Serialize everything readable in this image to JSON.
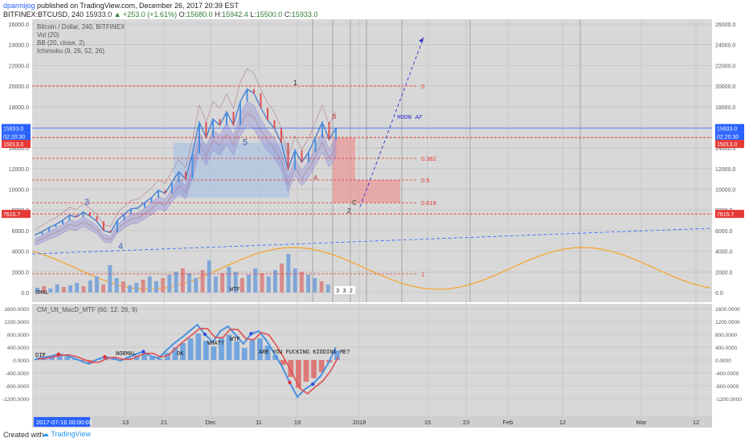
{
  "header": {
    "user": "dparmijog",
    "published_text": "published on TradingView.com, December 26, 2017 20:39 EST",
    "symbol": "BITFINEX:BTCUSD, 240",
    "change": "▲ +253.0 (+1.61%)",
    "price": "15933.0",
    "open_label": "O:",
    "open": "15680.0",
    "high_label": "H:",
    "high": "15942.4",
    "low_label": "L:",
    "low": "15500.0",
    "close_label": "C:",
    "close": "15933.0"
  },
  "legend": {
    "title": "Bitcoin / Dollar, 240, BITFINEX",
    "vol": "Vol (20)",
    "bb": "BB (20, close, 2)",
    "ichimoku": "Ichimoku (9, 26, 52, 26)",
    "macd": "CM_Ult_MacD_MTF (60, 12, 26, 9)"
  },
  "colors": {
    "pane_bg": "#d8d8d8",
    "grid": "#bcbcbc",
    "price_line": "#2962ff",
    "level_red": "#e53935",
    "sine": "#f7a325",
    "box_blue": "rgba(160,190,230,0.55)",
    "box_red": "rgba(235,150,150,0.7)",
    "macd_up": "#4a90e2",
    "macd_down": "#e05050"
  },
  "chart_data": [
    {
      "type": "line",
      "title": "Bitcoin / Dollar, 240, BITFINEX",
      "ylim": [
        0,
        26000
      ],
      "y_ticks": [
        "0.0",
        "2000.0",
        "4000.0",
        "6000.0",
        "8000.0",
        "10000.0",
        "12000.0",
        "14000.0",
        "16000.0",
        "18000.0",
        "20000.0",
        "22000.0",
        "24000.0",
        "26000.0"
      ],
      "x_ticks": [
        "13",
        "21",
        "Dec",
        "11",
        "19",
        "2018",
        "15",
        "23",
        "Feb",
        "12",
        "Mar",
        "12"
      ],
      "series": [
        {
          "values": [
            5600,
            5900,
            6300,
            6600,
            7000,
            7500,
            7300,
            7800,
            7400,
            6900,
            6000,
            5800,
            7000,
            7600,
            8100,
            8200,
            8700,
            9200,
            9900,
            9600,
            10700,
            11700,
            11000,
            13500,
            16500,
            15000,
            16800,
            16200,
            17500,
            16200,
            18500,
            19700,
            19300,
            17900,
            16700,
            15900,
            14500,
            11900,
            13800,
            12600,
            13600,
            15000,
            16500,
            14800,
            15933
          ]
        }
      ],
      "price_labels": {
        "last": "15933.0",
        "countdown": "02:20:30",
        "level_upper": "15013.0",
        "level_lower": "7615.7"
      },
      "fib_levels": [
        {
          "label": "0",
          "value": 20000
        },
        {
          "label": "0.382",
          "value": 13000
        },
        {
          "label": "0.5",
          "value": 10900
        },
        {
          "label": "0.618",
          "value": 8700
        },
        {
          "label": "1",
          "value": 1800
        }
      ],
      "annotations": {
        "moon": "MOON AF",
        "wave": [
          "1",
          "2",
          "3",
          "4",
          "5",
          "A",
          "B",
          "C"
        ],
        "trough": "2",
        "vol_label": "SMAL",
        "vol_label2": "WTF",
        "bars_mini": "3 3 2"
      }
    },
    {
      "type": "line",
      "title": "CM_Ult_MacD_MTF (60, 12, 26, 9)",
      "ylim": [
        -1600,
        1600
      ],
      "y_ticks": [
        "1600.0000",
        "1200.0000",
        "800.0000",
        "400.0000",
        "0.0000",
        "-400.0000",
        "-800.0000",
        "-1200.0000"
      ],
      "series": [
        {
          "name": "macd",
          "values": [
            30,
            80,
            120,
            180,
            140,
            60,
            -40,
            -120,
            20,
            100,
            60,
            -20,
            80,
            180,
            260,
            120,
            60,
            300,
            520,
            700,
            900,
            1100,
            800,
            560,
            900,
            1050,
            780,
            500,
            820,
            900,
            600,
            200,
            -200,
            -700,
            -1150,
            -900,
            -750,
            -500,
            -100,
            400
          ]
        }
      ],
      "annotations": [
        "DIP",
        "NORMAL",
        "OK",
        "WHAT?",
        "WTF",
        "ARE YOU FUCKING KIDDING ME?"
      ],
      "date_label": "2017-07-16 00:00:00"
    }
  ],
  "footer": {
    "created": "Created with",
    "brand": "TradingView"
  }
}
